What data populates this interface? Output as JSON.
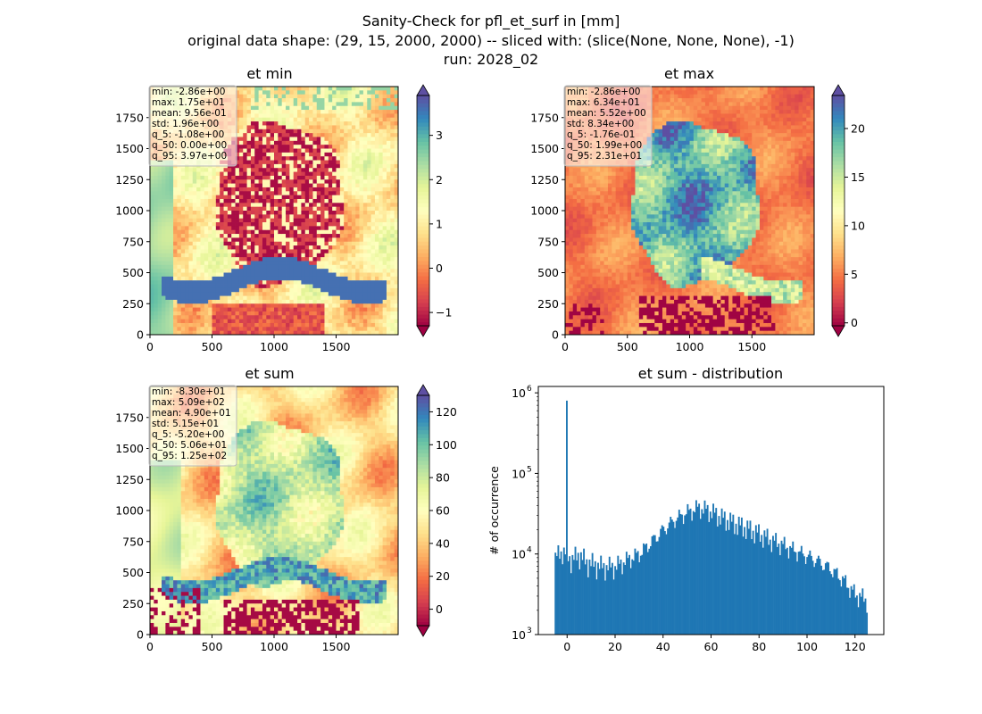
{
  "figure": {
    "title_lines": [
      "Sanity-Check for pfl_et_surf in [mm]",
      "original data shape: (29, 15, 2000, 2000) -- sliced with: (slice(None, None, None), -1)",
      "run: 2028_02"
    ]
  },
  "colors": {
    "hist_bar": "#1f77b4",
    "spectral": [
      "#9e0142",
      "#d53e4f",
      "#f46d43",
      "#fdae61",
      "#fee08b",
      "#ffffbf",
      "#e6f598",
      "#abdda4",
      "#66c2a5",
      "#3288bd",
      "#5e4fa2"
    ]
  },
  "panels": [
    {
      "title": "et min",
      "stats": [
        "min: -2.86e+00",
        "max: 1.75e+01",
        "mean: 9.56e-01",
        "std: 1.96e+00",
        "q_5: -1.08e+00",
        "q_50: 0.00e+00",
        "q_95: 3.97e+00"
      ],
      "xticks": [
        "0",
        "500",
        "1000",
        "1500"
      ],
      "yticks": [
        "0",
        "250",
        "500",
        "750",
        "1000",
        "1250",
        "1500",
        "1750"
      ],
      "colorbar": {
        "vmin": -1.3,
        "vmax": 3.9,
        "ticks": [
          -1,
          0,
          1,
          2,
          3
        ],
        "ticklabels": [
          "−1",
          "0",
          "1",
          "2",
          "3"
        ]
      }
    },
    {
      "title": "et max",
      "stats": [
        "min: -2.86e+00",
        "max: 6.34e+01",
        "mean: 5.52e+00",
        "std: 8.34e+00",
        "q_5: -1.76e-01",
        "q_50: 1.99e+00",
        "q_95: 2.31e+01"
      ],
      "xticks": [
        "0",
        "500",
        "1000",
        "1500"
      ],
      "yticks": [
        "0",
        "250",
        "500",
        "750",
        "1000",
        "1250",
        "1500",
        "1750"
      ],
      "colorbar": {
        "vmin": -0.3,
        "vmax": 23.4,
        "ticks": [
          0,
          5,
          10,
          15,
          20
        ],
        "ticklabels": [
          "0",
          "5",
          "10",
          "15",
          "20"
        ]
      }
    },
    {
      "title": "et sum",
      "stats": [
        "min: -8.30e+01",
        "max: 5.09e+02",
        "mean: 4.90e+01",
        "std: 5.15e+01",
        "q_5: -5.20e+00",
        "q_50: 5.06e+01",
        "q_95: 1.25e+02"
      ],
      "xticks": [
        "0",
        "500",
        "1000",
        "1500"
      ],
      "yticks": [
        "0",
        "250",
        "500",
        "750",
        "1000",
        "1250",
        "1500",
        "1750"
      ],
      "colorbar": {
        "vmin": -10,
        "vmax": 130,
        "ticks": [
          0,
          20,
          40,
          60,
          80,
          100,
          120
        ],
        "ticklabels": [
          "0",
          "20",
          "40",
          "60",
          "80",
          "100",
          "120"
        ]
      }
    }
  ],
  "chart_data": {
    "type": "bar",
    "title": "et sum - distribution",
    "ylabel": "# of occurrence",
    "xlabel": "",
    "yscale": "log",
    "xlim": [
      -12,
      132
    ],
    "ylim": [
      1000,
      1200000
    ],
    "xticks": [
      0,
      20,
      40,
      60,
      80,
      100,
      120
    ],
    "xticklabels": [
      "0",
      "20",
      "40",
      "60",
      "80",
      "100",
      "120"
    ],
    "yticks": [
      1000,
      10000,
      100000,
      1000000
    ],
    "yticklabels": [
      "10",
      "10",
      "10",
      "10"
    ],
    "ytickexps": [
      "3",
      "4",
      "5",
      "6"
    ],
    "spike": {
      "x": 0,
      "value": 800000
    },
    "bins": {
      "start": -5.2,
      "end": 125.2,
      "count": 220
    },
    "profile": [
      {
        "x": -5,
        "y": 9000
      },
      {
        "x": -2,
        "y": 11000
      },
      {
        "x": 2,
        "y": 8500
      },
      {
        "x": 5,
        "y": 10000
      },
      {
        "x": 8,
        "y": 8000
      },
      {
        "x": 15,
        "y": 7000
      },
      {
        "x": 20,
        "y": 7000
      },
      {
        "x": 25,
        "y": 8500
      },
      {
        "x": 30,
        "y": 10000
      },
      {
        "x": 35,
        "y": 14000
      },
      {
        "x": 40,
        "y": 20000
      },
      {
        "x": 45,
        "y": 27000
      },
      {
        "x": 50,
        "y": 33000
      },
      {
        "x": 55,
        "y": 38000
      },
      {
        "x": 60,
        "y": 34000
      },
      {
        "x": 65,
        "y": 28000
      },
      {
        "x": 70,
        "y": 24000
      },
      {
        "x": 75,
        "y": 21000
      },
      {
        "x": 80,
        "y": 18000
      },
      {
        "x": 85,
        "y": 15000
      },
      {
        "x": 90,
        "y": 13000
      },
      {
        "x": 95,
        "y": 11000
      },
      {
        "x": 100,
        "y": 9500
      },
      {
        "x": 105,
        "y": 8000
      },
      {
        "x": 110,
        "y": 6500
      },
      {
        "x": 115,
        "y": 4800
      },
      {
        "x": 120,
        "y": 3200
      },
      {
        "x": 125,
        "y": 2700
      }
    ]
  }
}
